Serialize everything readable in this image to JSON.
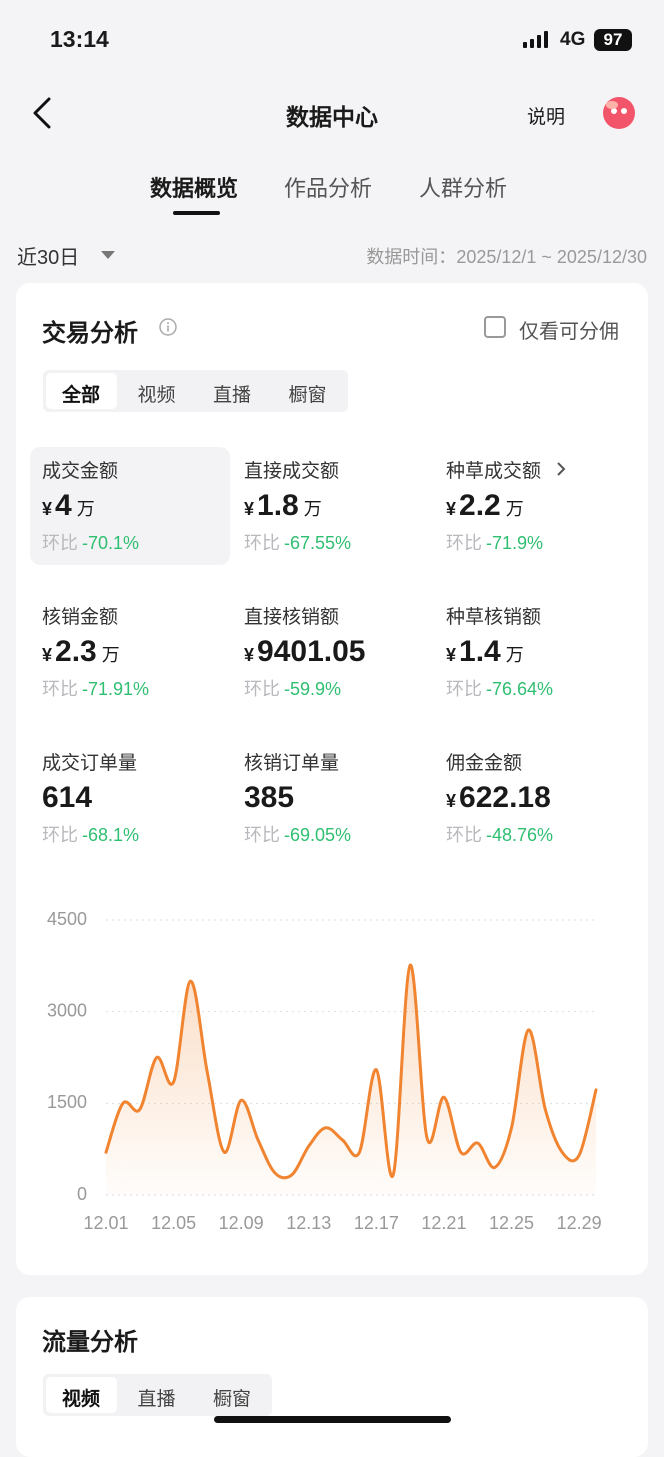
{
  "status_bar": {
    "time": "13:14",
    "network": "4G",
    "battery": "97"
  },
  "nav": {
    "title": "数据中心",
    "help": "说明"
  },
  "tabs": [
    "数据概览",
    "作品分析",
    "人群分析"
  ],
  "date_range": {
    "label": "近30日",
    "data_time_label": "数据时间：",
    "data_time": "2025/12/1 ~ 2025/12/30"
  },
  "trade": {
    "title": "交易分析",
    "commission_only": "仅看可分佣",
    "filters": [
      "全部",
      "视频",
      "直播",
      "橱窗"
    ],
    "metrics": [
      {
        "label": "成交金额",
        "currency": "¥",
        "value": "4",
        "unit": "万",
        "compare_label": "环比",
        "change": "-70.1%"
      },
      {
        "label": "直接成交额",
        "currency": "¥",
        "value": "1.8",
        "unit": "万",
        "compare_label": "环比",
        "change": "-67.55%"
      },
      {
        "label": "种草成交额",
        "currency": "¥",
        "value": "2.2",
        "unit": "万",
        "compare_label": "环比",
        "change": "-71.9%"
      },
      {
        "label": "核销金额",
        "currency": "¥",
        "value": "2.3",
        "unit": "万",
        "compare_label": "环比",
        "change": "-71.91%"
      },
      {
        "label": "直接核销额",
        "currency": "¥",
        "value": "9401.05",
        "compare_label": "环比",
        "change": "-59.9%"
      },
      {
        "label": "种草核销额",
        "currency": "¥",
        "value": "1.4",
        "unit": "万",
        "compare_label": "环比",
        "change": "-76.64%"
      },
      {
        "label": "成交订单量",
        "value": "614",
        "compare_label": "环比",
        "change": "-68.1%"
      },
      {
        "label": "核销订单量",
        "value": "385",
        "compare_label": "环比",
        "change": "-69.05%"
      },
      {
        "label": "佣金金额",
        "currency": "¥",
        "value": "622.18",
        "compare_label": "环比",
        "change": "-48.76%"
      }
    ]
  },
  "chart_data": {
    "type": "line",
    "categories": [
      "12.01",
      null,
      null,
      null,
      "12.05",
      null,
      null,
      null,
      "12.09",
      null,
      null,
      null,
      "12.13",
      null,
      null,
      null,
      "12.17",
      null,
      null,
      null,
      "12.21",
      null,
      null,
      null,
      "12.25",
      null,
      null,
      null,
      "12.29",
      null
    ],
    "values": [
      700,
      1500,
      1400,
      2250,
      1850,
      3500,
      2000,
      700,
      1550,
      900,
      360,
      330,
      800,
      1100,
      900,
      700,
      2050,
      330,
      3760,
      930,
      1600,
      700,
      850,
      450,
      1100,
      2700,
      1400,
      700,
      650,
      1720
    ],
    "color": "#f08430",
    "ylim": [
      0,
      4500
    ],
    "yticks": [
      0,
      1500,
      3000,
      4500
    ],
    "grid": true
  },
  "traffic": {
    "title": "流量分析",
    "filters": [
      "视频",
      "直播",
      "橱窗"
    ]
  }
}
